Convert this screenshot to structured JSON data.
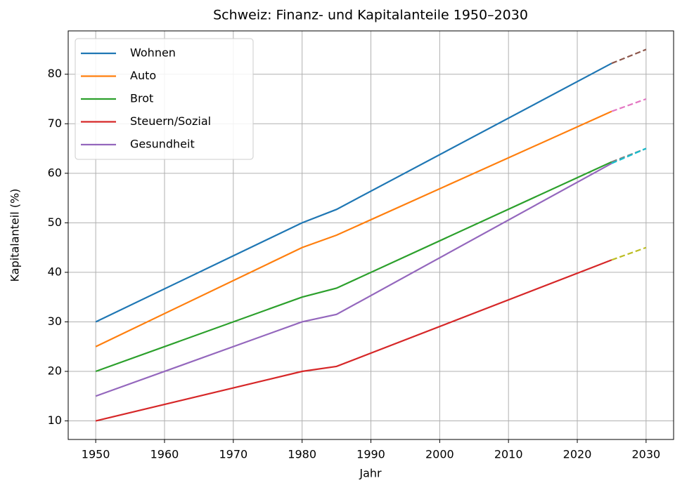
{
  "chart_data": {
    "type": "line",
    "title": "Schweiz: Finanz- und Kapitalanteile 1950–2030",
    "xlabel": "Jahr",
    "ylabel": "Kapitalanteil (%)",
    "x": [
      1950,
      1980,
      1985,
      2025
    ],
    "series": [
      {
        "name": "Wohnen",
        "color": "#1f77b4",
        "values": [
          30,
          50,
          52.7,
          82.2
        ],
        "forecast": {
          "x": [
            2025,
            2030
          ],
          "values": [
            82.2,
            85
          ],
          "color": "#8c564b"
        }
      },
      {
        "name": "Auto",
        "color": "#ff7f0e",
        "values": [
          25,
          45,
          47.5,
          72.5
        ],
        "forecast": {
          "x": [
            2025,
            2030
          ],
          "values": [
            72.5,
            75
          ],
          "color": "#e377c2"
        }
      },
      {
        "name": "Brot",
        "color": "#2ca02c",
        "values": [
          20,
          35,
          36.8,
          62.3
        ],
        "forecast": {
          "x": [
            2025,
            2030
          ],
          "values": [
            62.3,
            65
          ],
          "color": "#7f7f7f"
        }
      },
      {
        "name": "Steuern/Sozial",
        "color": "#d62728",
        "values": [
          10,
          20,
          21,
          42.5
        ],
        "forecast": {
          "x": [
            2025,
            2030
          ],
          "values": [
            42.5,
            45
          ],
          "color": "#bcbd22"
        }
      },
      {
        "name": "Gesundheit",
        "color": "#9467bd",
        "values": [
          15,
          30,
          31.5,
          62
        ],
        "forecast": {
          "x": [
            2025,
            2030
          ],
          "values": [
            62,
            65
          ],
          "color": "#17becf"
        }
      }
    ],
    "xlim": [
      1946,
      2034
    ],
    "xticks": [
      1950,
      1960,
      1970,
      1980,
      1990,
      2000,
      2010,
      2020,
      2030
    ],
    "ylim": [
      6.25,
      88.75
    ],
    "yticks": [
      10,
      20,
      30,
      40,
      50,
      60,
      70,
      80
    ],
    "grid": true,
    "legend": "upper left"
  }
}
